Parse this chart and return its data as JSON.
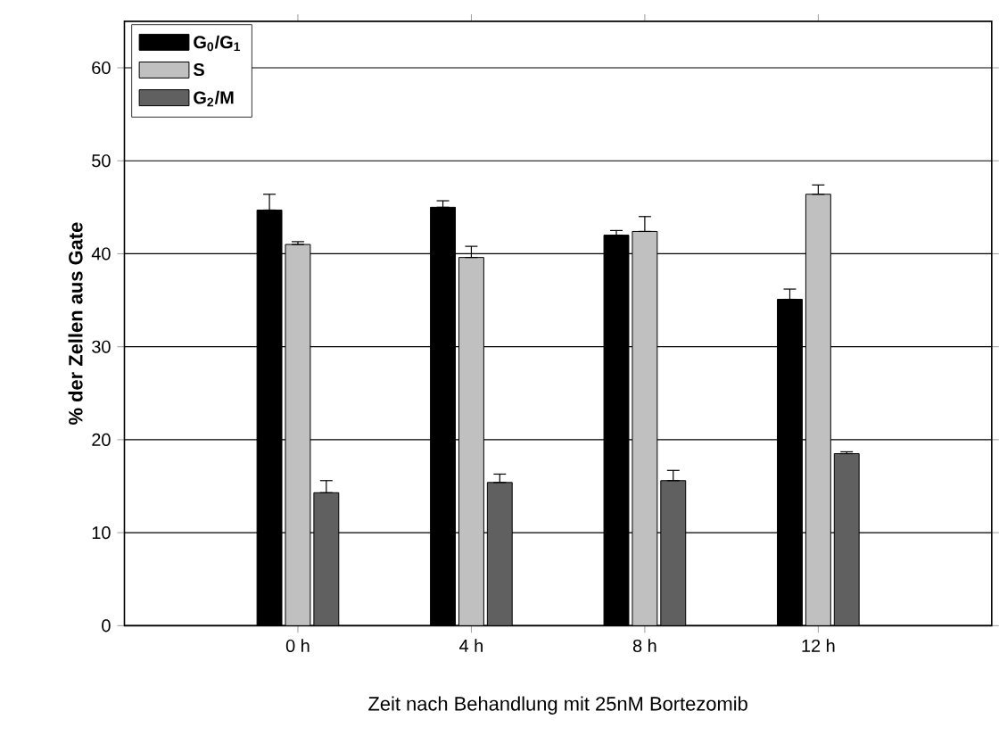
{
  "chart_data": {
    "type": "bar",
    "xlabel": "Zeit nach Behandlung mit 25nM Bortezomib",
    "ylabel": "% der Zellen aus Gate",
    "categories": [
      "0 h",
      "4 h",
      "8 h",
      "12 h"
    ],
    "series": [
      {
        "name": "G$_{0}$/G$_{1}$",
        "color": "#000000",
        "values": [
          44.7,
          45.0,
          42.0,
          35.1
        ],
        "errors": [
          [
            44.7,
            46.4
          ],
          [
            45.0,
            45.7
          ],
          [
            42.0,
            42.5
          ],
          [
            35.1,
            36.2
          ]
        ]
      },
      {
        "name": "S",
        "color": "#c0c0c0",
        "values": [
          41.0,
          39.6,
          42.4,
          46.4
        ],
        "errors": [
          [
            41.0,
            41.3
          ],
          [
            39.6,
            40.8
          ],
          [
            42.4,
            44.0
          ],
          [
            46.4,
            47.4
          ]
        ]
      },
      {
        "name": "G$_{2}$/M",
        "color": "#606060",
        "values": [
          14.3,
          15.4,
          15.6,
          18.5
        ],
        "errors": [
          [
            14.3,
            15.6
          ],
          [
            15.4,
            16.3
          ],
          [
            15.6,
            16.7
          ],
          [
            18.5,
            18.7
          ]
        ]
      }
    ],
    "ylim": [
      0,
      65
    ],
    "yticks": [
      0,
      10,
      20,
      30,
      40,
      50,
      60
    ],
    "grid": "y",
    "legend": "top left"
  }
}
